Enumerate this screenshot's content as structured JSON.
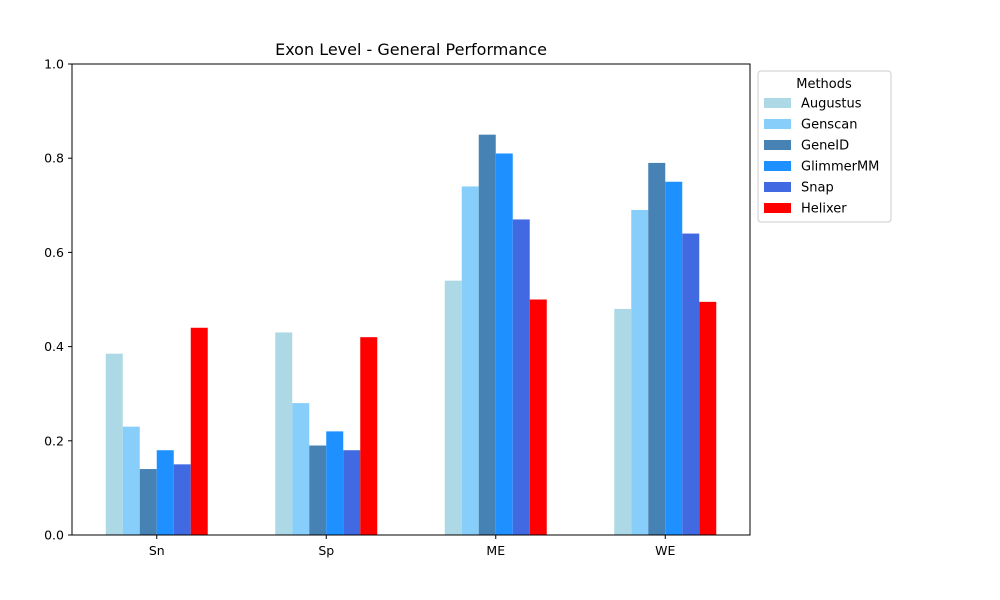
{
  "chart_data": {
    "type": "bar",
    "title": "Exon Level - General Performance",
    "xlabel": "",
    "ylabel": "",
    "categories": [
      "Sn",
      "Sp",
      "ME",
      "WE"
    ],
    "ylim": [
      0,
      1.0
    ],
    "yticks": [
      "0.0",
      "0.2",
      "0.4",
      "0.6",
      "0.8",
      "1.0"
    ],
    "grid": false,
    "legend": {
      "title": "Methods",
      "placement": "outside-right-top"
    },
    "series": [
      {
        "name": "Augustus",
        "color": "#add8e6",
        "values": [
          0.385,
          0.43,
          0.54,
          0.48
        ]
      },
      {
        "name": "Genscan",
        "color": "#87cefa",
        "values": [
          0.23,
          0.28,
          0.74,
          0.69
        ]
      },
      {
        "name": "GeneID",
        "color": "#4682b4",
        "values": [
          0.14,
          0.19,
          0.85,
          0.79
        ]
      },
      {
        "name": "GlimmerMM",
        "color": "#1e90ff",
        "values": [
          0.18,
          0.22,
          0.81,
          0.75
        ]
      },
      {
        "name": "Snap",
        "color": "#4169e1",
        "values": [
          0.15,
          0.18,
          0.67,
          0.64
        ]
      },
      {
        "name": "Helixer",
        "color": "#ff0000",
        "values": [
          0.44,
          0.42,
          0.5,
          0.495
        ]
      }
    ]
  }
}
